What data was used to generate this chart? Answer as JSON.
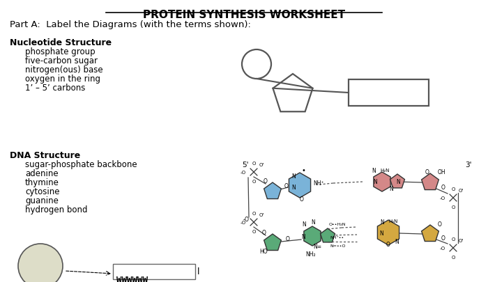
{
  "title": "PROTEIN SYNTHESIS WORKSHEET",
  "part_a_label": "Part A:  Label the Diagrams (with the terms shown):",
  "nucleotide_title": "Nucleotide Structure",
  "nucleotide_terms": [
    "phosphate group",
    "five-carbon sugar",
    "nitrogen(ous) base",
    "oxygen in the ring",
    "1’ – 5’ carbons"
  ],
  "dna_title": "DNA Structure",
  "dna_terms": [
    "sugar-phosphate backbone",
    "adenine",
    "thymine",
    "cytosine",
    "guanine",
    "hydrogen bond"
  ],
  "bg_color": "#ffffff",
  "text_color": "#000000",
  "line_color": "#555555",
  "blue_fill": "#7ab3d8",
  "pink_fill": "#d48888",
  "green_fill": "#5aaa78",
  "orange_fill": "#d4a840",
  "title_fontsize": 11,
  "body_fontsize": 8.5,
  "section_fontsize": 9,
  "small_fontsize": 5.5
}
